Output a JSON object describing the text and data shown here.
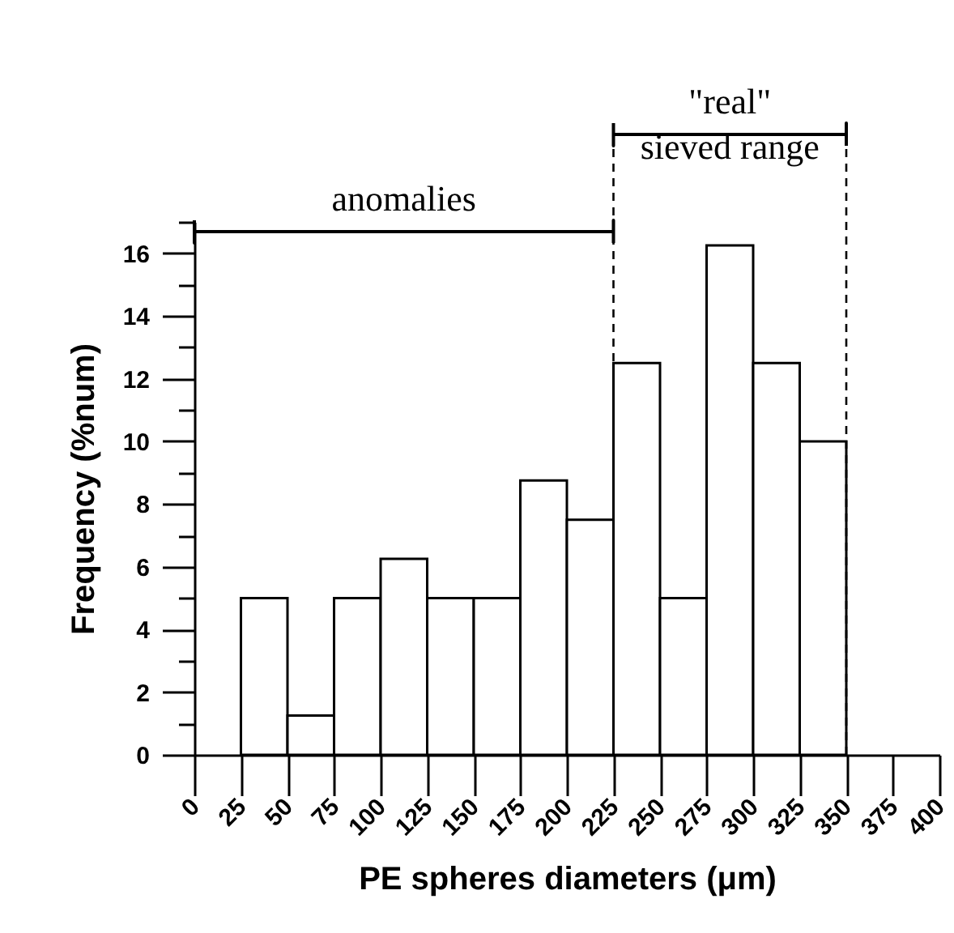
{
  "chart_data": {
    "type": "histogram",
    "xlabel": "PE spheres diameters (μm)",
    "ylabel": "Frequency (%num)",
    "bins": [
      25,
      50,
      75,
      100,
      125,
      150,
      175,
      200,
      225,
      250,
      275,
      300,
      325,
      350
    ],
    "values": [
      5,
      1.25,
      5,
      6.25,
      5,
      5,
      8.75,
      7.5,
      12.5,
      5,
      16.25,
      12.5,
      10
    ],
    "color": "#ffffff",
    "xlim": [
      0,
      400
    ],
    "xticks": [
      0,
      25,
      50,
      75,
      100,
      125,
      150,
      175,
      200,
      225,
      250,
      275,
      300,
      325,
      350,
      375,
      400
    ],
    "ylim": [
      0,
      17
    ],
    "yticks": [
      0,
      {
        "value": 1,
        "label": null
      },
      2,
      {
        "value": 3,
        "label": null
      },
      4,
      {
        "value": 5,
        "label": null
      },
      6,
      {
        "value": 7,
        "label": null
      },
      8,
      {
        "value": 9,
        "label": null
      },
      10,
      {
        "value": 11,
        "label": null
      },
      12,
      {
        "value": 13,
        "label": null
      },
      14,
      {
        "value": 15,
        "label": null
      },
      16,
      {
        "value": 17,
        "label": null
      }
    ],
    "ref_lines": [
      {
        "axis": "x",
        "value": 225,
        "line_style": "dashed"
      },
      {
        "axis": "x",
        "value": 350,
        "line_style": "dashed"
      }
    ],
    "annotations": [
      "anomalies",
      "\"real\"\nsieved range"
    ]
  }
}
